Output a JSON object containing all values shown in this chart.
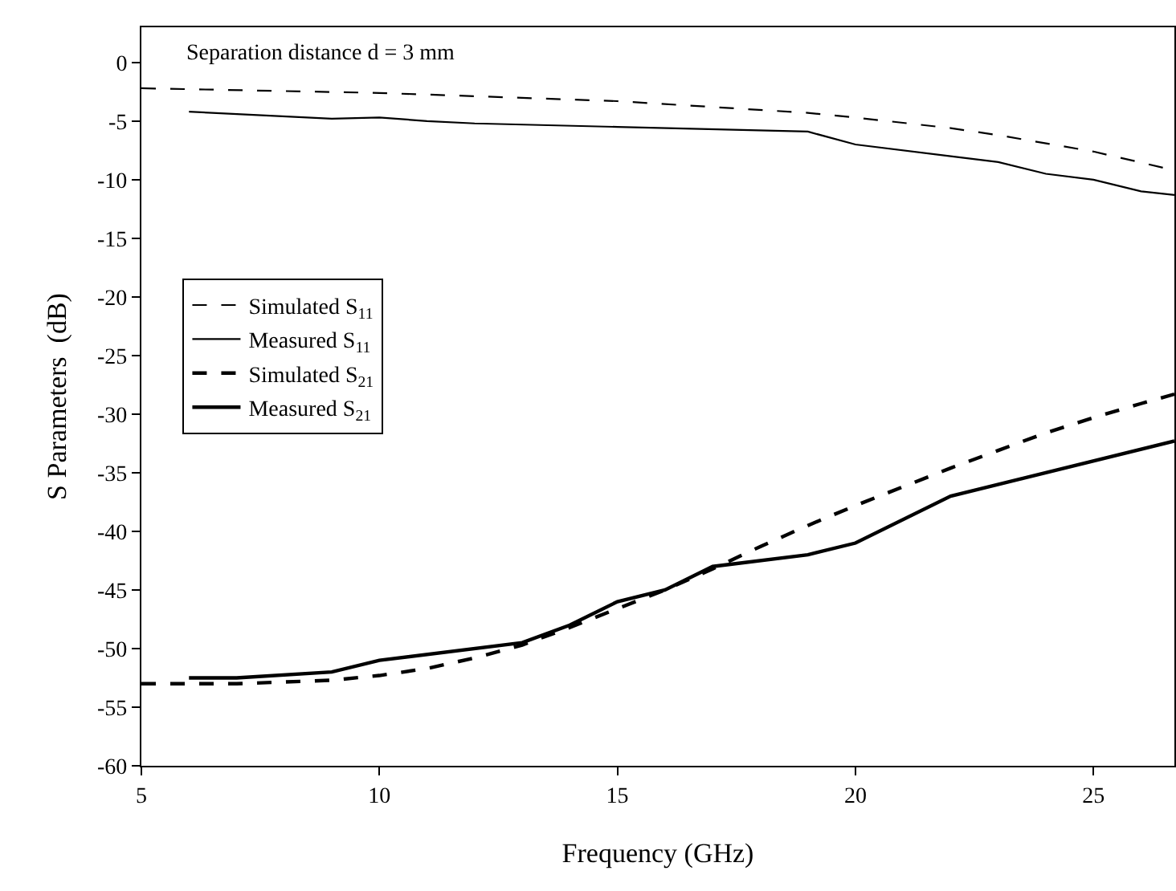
{
  "chart_data": {
    "type": "line",
    "xlabel": "Frequency (GHz)",
    "ylabel": "S Parameters  (dB)",
    "annotations": [
      "Separation distance d = 3 mm"
    ],
    "xlim": [
      5,
      26.7
    ],
    "xticks": [
      5,
      10,
      15,
      20,
      25
    ],
    "ylim": [
      -60,
      3
    ],
    "yticks": [
      -60,
      -55,
      -50,
      -45,
      -40,
      -35,
      -30,
      -25,
      -20,
      -15,
      -10,
      -5,
      0
    ],
    "grid": false,
    "legend": "left",
    "marker": "none",
    "series": [
      {
        "name": "Simulated S$_{11}$",
        "color": "#000000",
        "line_style": "dashed",
        "x": [
          5,
          10,
          15,
          19,
          20,
          22,
          23,
          25,
          26.7
        ],
        "values": [
          -2.2,
          -2.6,
          -3.3,
          -4.3,
          -4.7,
          -5.6,
          -6.2,
          -7.6,
          -9.2
        ]
      },
      {
        "name": "Measured S$_{11}$",
        "color": "#000000",
        "line_style": "solid",
        "x": [
          6,
          9,
          10,
          11,
          12,
          15,
          19,
          20,
          22,
          23,
          24,
          25,
          26,
          26.7
        ],
        "values": [
          -4.2,
          -4.8,
          -4.7,
          -5.0,
          -5.2,
          -5.5,
          -5.9,
          -7.0,
          -8.0,
          -8.5,
          -9.5,
          -10,
          -11,
          -11.3
        ]
      },
      {
        "name": "Simulated S$_{21}$",
        "color": "#000000",
        "line_style": "dashed",
        "x": [
          5,
          7,
          9,
          10,
          11,
          12,
          13,
          14,
          15,
          16,
          17,
          18,
          19,
          20,
          21,
          22,
          23,
          24,
          25,
          26,
          26.7
        ],
        "values": [
          -53,
          -53,
          -52.7,
          -52.3,
          -51.7,
          -50.8,
          -49.7,
          -48.2,
          -46.6,
          -45,
          -43.2,
          -41.3,
          -39.5,
          -37.8,
          -36.2,
          -34.6,
          -33.1,
          -31.6,
          -30.3,
          -29.1,
          -28.3
        ]
      },
      {
        "name": "Measured S$_{21}$",
        "color": "#000000",
        "line_style": "solid",
        "x": [
          6,
          7,
          9,
          10,
          13,
          14,
          15,
          16,
          17,
          19,
          20,
          22,
          26.7
        ],
        "values": [
          -52.5,
          -52.5,
          -52,
          -51,
          -49.5,
          -48,
          -46,
          -45,
          -43,
          -42,
          -41,
          -37,
          -32.3
        ]
      }
    ]
  }
}
